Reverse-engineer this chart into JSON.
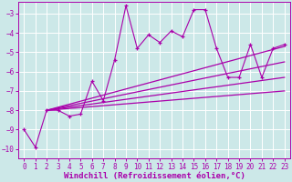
{
  "background_color": "#cce8e8",
  "grid_color": "#ffffff",
  "line_color": "#aa00aa",
  "xlabel": "Windchill (Refroidissement éolien,°C)",
  "xlim": [
    -0.5,
    23.5
  ],
  "ylim": [
    -10.5,
    -2.4
  ],
  "xticks": [
    0,
    1,
    2,
    3,
    4,
    5,
    6,
    7,
    8,
    9,
    10,
    11,
    12,
    13,
    14,
    15,
    16,
    17,
    18,
    19,
    20,
    21,
    22,
    23
  ],
  "yticks": [
    -3,
    -4,
    -5,
    -6,
    -7,
    -8,
    -9,
    -10
  ],
  "scatter_x": [
    0,
    1,
    2,
    3,
    4,
    5,
    6,
    7,
    8,
    9,
    10,
    11,
    12,
    13,
    14,
    15,
    16,
    17,
    18,
    19,
    20,
    21,
    22,
    23
  ],
  "scatter_y": [
    -9.0,
    -9.9,
    -8.0,
    -8.0,
    -8.3,
    -8.2,
    -6.5,
    -7.5,
    -5.4,
    -2.6,
    -4.8,
    -4.1,
    -4.5,
    -3.9,
    -4.2,
    -2.8,
    -2.8,
    -4.8,
    -6.3,
    -6.3,
    -4.6,
    -6.3,
    -4.8,
    -4.6
  ],
  "reg_lines": [
    [
      2,
      -8.0,
      23,
      -4.7
    ],
    [
      2,
      -8.0,
      23,
      -5.5
    ],
    [
      2,
      -8.0,
      23,
      -6.3
    ],
    [
      2,
      -8.0,
      23,
      -7.0
    ]
  ],
  "tickfontsize": 5.5,
  "xlabelfontsize": 6.5
}
